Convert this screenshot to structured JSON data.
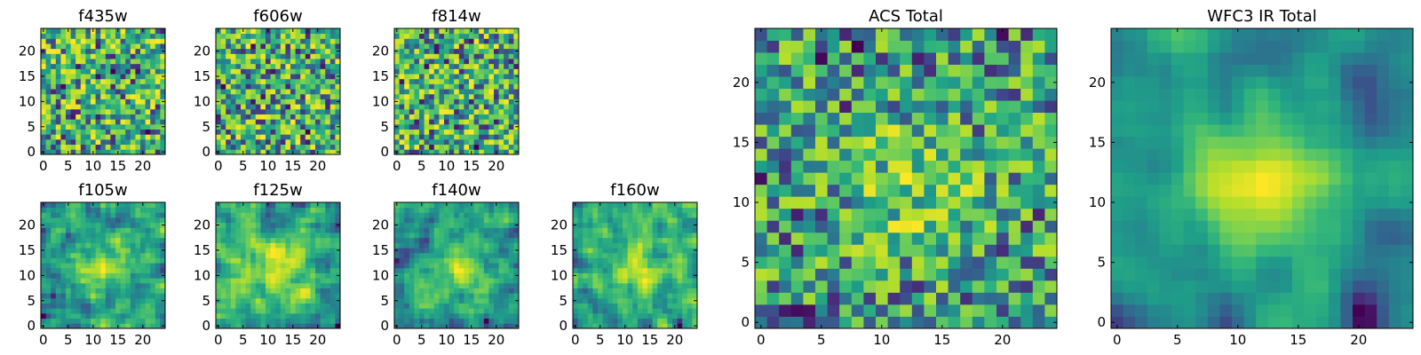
{
  "chart_data": [
    {
      "type": "heatmap",
      "title": "f435w",
      "seed": 11,
      "xticks": [
        0,
        5,
        10,
        15,
        20
      ],
      "yticks": [
        0,
        5,
        10,
        15,
        20
      ],
      "xlim": [
        -0.5,
        24.5
      ],
      "ylim": [
        -0.5,
        24.5
      ],
      "grid_size": 25,
      "colormap": "viridis"
    },
    {
      "type": "heatmap",
      "title": "f606w",
      "seed": 23,
      "xticks": [
        0,
        5,
        10,
        15,
        20
      ],
      "yticks": [
        0,
        5,
        10,
        15,
        20
      ],
      "xlim": [
        -0.5,
        24.5
      ],
      "ylim": [
        -0.5,
        24.5
      ],
      "grid_size": 25,
      "colormap": "viridis"
    },
    {
      "type": "heatmap",
      "title": "f814w",
      "seed": 37,
      "xticks": [
        0,
        5,
        10,
        15,
        20
      ],
      "yticks": [
        0,
        5,
        10,
        15,
        20
      ],
      "xlim": [
        -0.5,
        24.5
      ],
      "ylim": [
        -0.5,
        24.5
      ],
      "grid_size": 25,
      "colormap": "viridis"
    },
    {
      "type": "heatmap",
      "title": "f105w",
      "seed": 41,
      "xticks": [
        0,
        5,
        10,
        15,
        20
      ],
      "yticks": [
        0,
        5,
        10,
        15,
        20
      ],
      "xlim": [
        -0.5,
        24.5
      ],
      "ylim": [
        -0.5,
        24.5
      ],
      "grid_size": 25,
      "colormap": "viridis"
    },
    {
      "type": "heatmap",
      "title": "f125w",
      "seed": 53,
      "xticks": [
        0,
        5,
        10,
        15,
        20
      ],
      "yticks": [
        0,
        5,
        10,
        15,
        20
      ],
      "xlim": [
        -0.5,
        24.5
      ],
      "ylim": [
        -0.5,
        24.5
      ],
      "grid_size": 25,
      "colormap": "viridis"
    },
    {
      "type": "heatmap",
      "title": "f140w",
      "seed": 67,
      "xticks": [
        0,
        5,
        10,
        15,
        20
      ],
      "yticks": [
        0,
        5,
        10,
        15,
        20
      ],
      "xlim": [
        -0.5,
        24.5
      ],
      "ylim": [
        -0.5,
        24.5
      ],
      "grid_size": 25,
      "colormap": "viridis"
    },
    {
      "type": "heatmap",
      "title": "f160w",
      "seed": 79,
      "xticks": [
        0,
        5,
        10,
        15,
        20
      ],
      "yticks": [
        0,
        5,
        10,
        15,
        20
      ],
      "xlim": [
        -0.5,
        24.5
      ],
      "ylim": [
        -0.5,
        24.5
      ],
      "grid_size": 25,
      "colormap": "viridis"
    },
    {
      "type": "heatmap",
      "title": "ACS Total",
      "seed": 97,
      "xticks": [
        0,
        5,
        10,
        15,
        20
      ],
      "yticks": [
        0,
        5,
        10,
        15,
        20
      ],
      "xlim": [
        -0.5,
        24.5
      ],
      "ylim": [
        -0.5,
        24.5
      ],
      "grid_size": 25,
      "colormap": "viridis"
    },
    {
      "type": "heatmap",
      "title": "WFC3 IR Total",
      "seed": 131,
      "xticks": [
        0,
        5,
        10,
        15,
        20
      ],
      "yticks": [
        0,
        5,
        10,
        15,
        20
      ],
      "xlim": [
        -0.5,
        24.5
      ],
      "ylim": [
        -0.5,
        24.5
      ],
      "grid_size": 25,
      "colormap": "viridis"
    }
  ]
}
